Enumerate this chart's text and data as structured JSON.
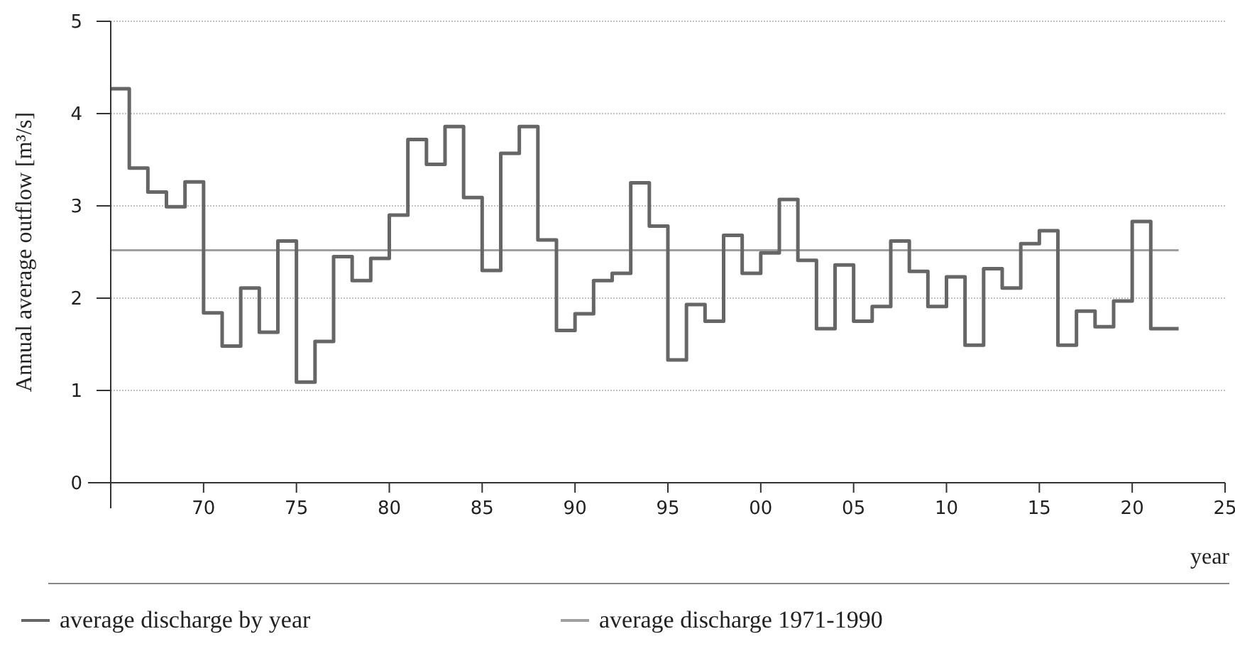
{
  "chart_data": {
    "type": "step",
    "ylabel": "Annual average outflow [m³/s]",
    "xlabel": "year",
    "x": [
      1965,
      1966,
      1967,
      1968,
      1969,
      1970,
      1971,
      1972,
      1973,
      1974,
      1975,
      1976,
      1977,
      1978,
      1979,
      1980,
      1981,
      1982,
      1983,
      1984,
      1985,
      1986,
      1987,
      1988,
      1989,
      1990,
      1991,
      1992,
      1993,
      1994,
      1995,
      1996,
      1997,
      1998,
      1999,
      2000,
      2001,
      2002,
      2003,
      2004,
      2005,
      2006,
      2007,
      2008,
      2009,
      2010,
      2011,
      2012,
      2013,
      2014,
      2015,
      2016,
      2017,
      2018,
      2019,
      2020,
      2021,
      2022.5
    ],
    "series": [
      {
        "name": "average discharge by year",
        "color": "#666666",
        "values": [
          4.27,
          3.41,
          3.15,
          2.99,
          3.26,
          1.84,
          1.48,
          2.11,
          1.63,
          2.62,
          1.09,
          1.53,
          2.45,
          2.19,
          2.43,
          2.9,
          3.72,
          3.45,
          3.86,
          3.09,
          2.3,
          3.57,
          3.86,
          2.63,
          1.65,
          1.83,
          2.19,
          2.27,
          3.25,
          2.78,
          1.33,
          1.93,
          1.75,
          2.68,
          2.27,
          2.49,
          3.07,
          2.41,
          1.67,
          2.36,
          1.75,
          1.91,
          2.62,
          2.29,
          1.91,
          2.23,
          1.49,
          2.32,
          2.11,
          2.59,
          2.73,
          1.49,
          1.86,
          1.69,
          1.97,
          2.83,
          1.67,
          1.67
        ]
      }
    ],
    "ref_lines": [
      {
        "axis": "y",
        "value": 2.52,
        "label": "average discharge 1971-1990",
        "color": "#a0a0a0"
      }
    ],
    "xlim": [
      1965,
      2025
    ],
    "xticks": [
      {
        "value": 1970,
        "label": "70"
      },
      {
        "value": 1975,
        "label": "75"
      },
      {
        "value": 1980,
        "label": "80"
      },
      {
        "value": 1985,
        "label": "85"
      },
      {
        "value": 1990,
        "label": "90"
      },
      {
        "value": 1995,
        "label": "95"
      },
      {
        "value": 2000,
        "label": "00"
      },
      {
        "value": 2005,
        "label": "05"
      },
      {
        "value": 2010,
        "label": "10"
      },
      {
        "value": 2015,
        "label": "15"
      },
      {
        "value": 2020,
        "label": "20"
      },
      {
        "value": 2025,
        "label": "25"
      }
    ],
    "ylim": [
      0,
      5
    ],
    "yticks": [
      0,
      1,
      2,
      3,
      4,
      5
    ],
    "grid": "y",
    "legend": "bottom",
    "line_style": "solid",
    "marker": "none"
  }
}
